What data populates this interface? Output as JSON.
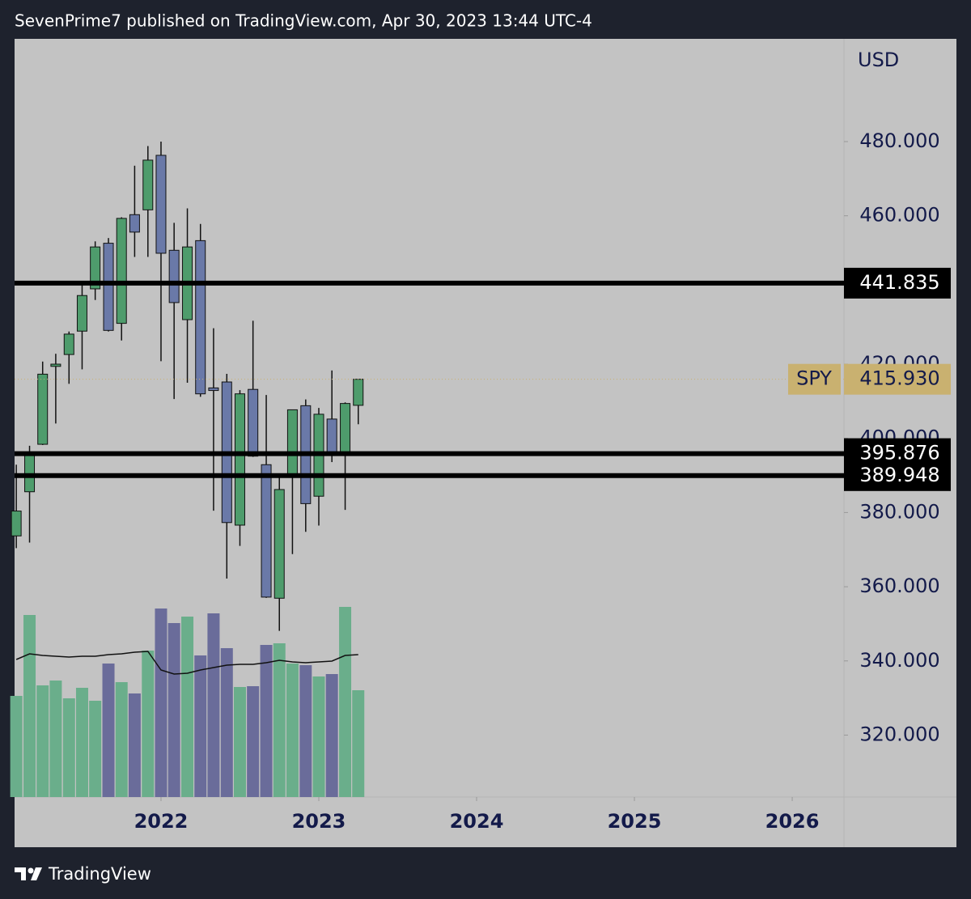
{
  "header": "SevenPrime7 published on TradingView.com, Apr 30, 2023 13:44 UTC-4",
  "footer": "TradingView",
  "chart_data": {
    "type": "candlestick",
    "currency": "USD",
    "x": [
      2021.083,
      2021.167,
      2021.25,
      2021.333,
      2021.417,
      2021.5,
      2021.583,
      2021.667,
      2021.75,
      2021.833,
      2021.917,
      2022,
      2022.083,
      2022.167,
      2022.25,
      2022.333,
      2022.417,
      2022.5,
      2022.583,
      2022.667,
      2022.75,
      2022.833,
      2022.917,
      2023,
      2023.083,
      2023.167,
      2023.25
    ],
    "open": [
      373.7,
      385.6,
      398.4,
      419.4,
      422.6,
      428.9,
      440.3,
      452.6,
      431.0,
      460.3,
      461.6,
      476.3,
      450.7,
      432.0,
      453.3,
      413.6,
      415.2,
      376.6,
      413.2,
      392.9,
      356.9,
      390.0,
      408.8,
      384.4,
      405.2,
      395.4,
      408.9
    ],
    "high": [
      392.9,
      398.0,
      420.7,
      422.8,
      428.8,
      441.8,
      453.1,
      454.0,
      459.6,
      473.5,
      478.8,
      480.0,
      458.1,
      462.0,
      457.8,
      429.7,
      417.4,
      413.0,
      431.7,
      411.7,
      389.5,
      407.7,
      410.5,
      408.2,
      418.3,
      409.7,
      415.9
    ],
    "low": [
      370.4,
      371.9,
      398.2,
      404.0,
      414.7,
      418.6,
      437.3,
      428.8,
      426.4,
      448.9,
      448.9,
      420.8,
      410.6,
      415.0,
      411.2,
      380.5,
      362.2,
      371.0,
      395.0,
      357.0,
      348.1,
      368.8,
      374.8,
      376.5,
      393.6,
      380.7,
      403.8
    ],
    "close": [
      380.4,
      396.3,
      417.3,
      420.0,
      428.1,
      438.5,
      451.6,
      429.1,
      459.3,
      455.6,
      475.0,
      449.9,
      436.6,
      451.6,
      412.0,
      412.9,
      377.3,
      412.0,
      395.2,
      357.2,
      386.2,
      407.7,
      382.4,
      406.5,
      396.3,
      409.4,
      415.93
    ],
    "volume": [
      1250,
      2250,
      1380,
      1440,
      1220,
      1350,
      1190,
      1650,
      1420,
      1280,
      1810,
      2330,
      2150,
      2230,
      1750,
      2270,
      1840,
      1360,
      1370,
      1880,
      1900,
      1650,
      1630,
      1490,
      1520,
      2350,
      1320
    ],
    "volume_ma": [
      1700,
      1770,
      1750,
      1740,
      1730,
      1740,
      1740,
      1760,
      1770,
      1790,
      1800,
      1570,
      1520,
      1530,
      1570,
      1600,
      1630,
      1640,
      1640,
      1660,
      1690,
      1670,
      1660,
      1670,
      1680,
      1750,
      1760
    ],
    "up_color": "#4e9c6c",
    "down_color": "#6a79a8",
    "volume_up_color": "#6aae8b",
    "volume_down_color": "#6a6c9a",
    "levels": [
      441.835,
      395.876,
      389.948
    ],
    "last_price": {
      "name": "SPY",
      "value": 415.93,
      "label": "415.930",
      "color": "#c9b170"
    },
    "xlim": [
      2021.072,
      2026.328
    ],
    "xticks": [
      2022,
      2023,
      2024,
      2025,
      2026
    ],
    "ylim": [
      303.3,
      507.7
    ],
    "yticks": [
      {
        "value": 320,
        "label": "320.000"
      },
      {
        "value": 340,
        "label": "340.000"
      },
      {
        "value": 360,
        "label": "360.000"
      },
      {
        "value": 380,
        "label": "380.000"
      },
      {
        "value": 400,
        "label": "400.000"
      },
      {
        "value": 420,
        "label": "420.000"
      },
      {
        "value": 460,
        "label": "460.000"
      },
      {
        "value": 480,
        "label": "480.000"
      }
    ],
    "grid": false
  }
}
